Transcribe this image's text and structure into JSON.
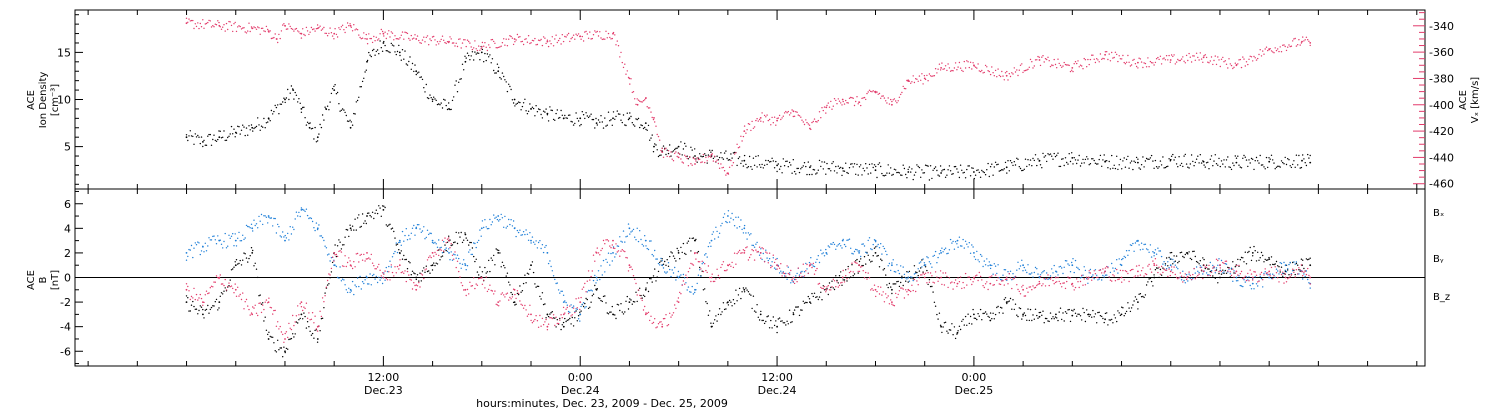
{
  "chart_data": [
    {
      "type": "scatter",
      "panel": "top",
      "left_axis": {
        "label_lines": [
          "ACE",
          "Ion Density",
          "[cm⁻³]"
        ],
        "ticks": [
          5,
          10,
          15
        ],
        "ylim": [
          0.5,
          19.5
        ],
        "color": "#000000"
      },
      "right_axis": {
        "label_lines": [
          "ACE",
          "Vₓ [km/s]"
        ],
        "ticks": [
          -340,
          -360,
          -380,
          -400,
          -420,
          -440,
          -460
        ],
        "ylim": [
          -464,
          -328
        ],
        "color": "#e23a6a"
      },
      "series": [
        {
          "color": "#000000",
          "axis": "left",
          "x": [
            0,
            1,
            2,
            3,
            4,
            5,
            6,
            6.5,
            7,
            7.5,
            8,
            8.5,
            9,
            10,
            11,
            12,
            13,
            14,
            15,
            16,
            17,
            18,
            19,
            20,
            21,
            22,
            23,
            24,
            25,
            26,
            27,
            28,
            28.5,
            29,
            30,
            31,
            32,
            34,
            36,
            38,
            40,
            42,
            44,
            46,
            48,
            50,
            52,
            54,
            56,
            58,
            60,
            62,
            64,
            66,
            68,
            68.5
          ],
          "y": [
            6,
            5.5,
            6,
            6.5,
            7,
            8,
            10,
            11,
            9,
            7,
            6,
            9,
            11,
            7,
            14,
            16,
            15,
            13,
            10,
            9,
            14,
            15,
            13,
            10,
            9,
            8.5,
            8,
            8,
            7.5,
            8,
            8,
            7.5,
            5,
            4.5,
            5,
            4,
            4,
            3.5,
            3,
            2.8,
            2.7,
            2.5,
            2.3,
            2.2,
            2.3,
            2.8,
            3.5,
            3.8,
            3.4,
            3.3,
            3.6,
            3.4,
            3.3,
            3.4,
            3.5,
            3.3
          ]
        },
        {
          "color": "#e23a6a",
          "axis": "right",
          "x": [
            0,
            2,
            4,
            5,
            5.5,
            6,
            7,
            8,
            9,
            10,
            11,
            12,
            14,
            16,
            18,
            20,
            22,
            24,
            26,
            27,
            27.5,
            28,
            28.5,
            29,
            30,
            31,
            32,
            33,
            34,
            35,
            36,
            37,
            38,
            39,
            40,
            41,
            42,
            43,
            44,
            45,
            46,
            48,
            50,
            52,
            54,
            56,
            58,
            60,
            62,
            64,
            66,
            68,
            68.5
          ],
          "y": [
            -338,
            -340,
            -342,
            -344,
            -350,
            -340,
            -346,
            -342,
            -346,
            -340,
            -350,
            -346,
            -350,
            -352,
            -356,
            -350,
            -352,
            -348,
            -346,
            -380,
            -400,
            -395,
            -410,
            -436,
            -440,
            -445,
            -438,
            -452,
            -420,
            -410,
            -412,
            -405,
            -418,
            -402,
            -396,
            -398,
            -390,
            -400,
            -382,
            -380,
            -372,
            -370,
            -378,
            -366,
            -372,
            -362,
            -368,
            -366,
            -364,
            -370,
            -358,
            -352,
            -353
          ]
        }
      ]
    },
    {
      "type": "scatter",
      "panel": "bottom",
      "left_axis": {
        "label_lines": [
          "ACE",
          "B",
          "[nT]"
        ],
        "ticks": [
          -6,
          -4,
          -2,
          0,
          2,
          4,
          6
        ],
        "ylim": [
          -7.2,
          7.2
        ],
        "color": "#000000"
      },
      "zero_line": true,
      "series": [
        {
          "name": "Bₓ",
          "color": "#000000",
          "x": [
            0,
            1,
            2,
            3,
            4,
            5,
            6,
            7,
            8,
            9,
            10,
            11,
            12,
            13,
            14,
            15,
            16,
            17,
            18,
            19,
            20,
            21,
            22,
            23,
            24,
            25,
            26,
            27,
            28,
            29,
            30,
            31,
            32,
            33,
            34,
            35,
            36,
            37,
            38,
            39,
            40,
            41,
            42,
            43,
            44,
            45,
            46,
            47,
            48,
            49,
            50,
            51,
            52,
            53,
            54,
            55,
            56,
            57,
            58,
            59,
            60,
            61,
            62,
            63,
            64,
            65,
            66,
            67,
            68,
            68.5
          ],
          "y": [
            -2,
            -3,
            -2,
            1,
            2,
            -5,
            -6,
            -3,
            -5,
            2,
            4,
            5,
            5.5,
            2,
            0,
            1,
            3,
            3.5,
            0,
            2,
            -2,
            1,
            -3,
            -4,
            -3,
            -1,
            -3,
            -2,
            -1,
            1,
            2,
            3,
            -4,
            -2,
            -1,
            -3,
            -4,
            -3,
            -2,
            -1,
            0,
            1,
            2,
            -1,
            0,
            1,
            -4,
            -4.5,
            -3,
            -3.5,
            -2,
            -3,
            -3.2,
            -3,
            -3.1,
            -3,
            -3.4,
            -3,
            -2,
            0,
            1.5,
            2,
            1,
            0,
            1,
            2,
            1.5,
            0.5,
            1,
            1
          ]
        },
        {
          "name": "Bᵧ",
          "color": "#1f7fd8",
          "x": [
            0,
            1,
            2,
            3,
            4,
            5,
            6,
            7,
            8,
            9,
            10,
            11,
            12,
            13,
            14,
            15,
            16,
            17,
            18,
            19,
            20,
            21,
            22,
            23,
            24,
            25,
            26,
            27,
            28,
            29,
            30,
            31,
            32,
            33,
            34,
            35,
            36,
            37,
            38,
            39,
            40,
            41,
            42,
            43,
            44,
            45,
            46,
            47,
            48,
            49,
            50,
            51,
            52,
            53,
            54,
            55,
            56,
            57,
            58,
            59,
            60,
            61,
            62,
            63,
            64,
            65,
            66,
            67,
            68,
            68.5
          ],
          "y": [
            2,
            2.5,
            3,
            3,
            4,
            5,
            3,
            5.5,
            4,
            1,
            -1,
            0,
            0,
            3,
            4,
            3,
            2,
            1,
            4,
            5,
            4,
            3,
            2,
            -2,
            -3,
            0,
            2,
            4,
            3,
            1,
            0,
            -1,
            3,
            5,
            4,
            2,
            1,
            0,
            1,
            2,
            3,
            2,
            3,
            1,
            0,
            1,
            2,
            3,
            2,
            1,
            0,
            1,
            0,
            0.5,
            1,
            0,
            0.5,
            1,
            3,
            2,
            1,
            0,
            0.5,
            1,
            0,
            -0.5,
            0,
            1,
            0.5,
            -0.5
          ]
        },
        {
          "name": "B_z",
          "color": "#e23a6a",
          "x": [
            0,
            1,
            2,
            3,
            4,
            5,
            6,
            7,
            8,
            9,
            10,
            11,
            12,
            13,
            14,
            15,
            16,
            17,
            18,
            19,
            20,
            21,
            22,
            23,
            24,
            25,
            26,
            27,
            28,
            29,
            30,
            31,
            32,
            33,
            34,
            35,
            36,
            37,
            38,
            39,
            40,
            41,
            42,
            43,
            44,
            45,
            46,
            47,
            48,
            49,
            50,
            51,
            52,
            53,
            54,
            55,
            56,
            57,
            58,
            59,
            60,
            61,
            62,
            63,
            64,
            65,
            66,
            67,
            68,
            68.5
          ],
          "y": [
            -1,
            -2,
            0,
            -1,
            -3,
            -2,
            -5,
            -2,
            -4,
            2,
            1,
            2,
            0,
            1,
            -1,
            2,
            3,
            -1,
            0,
            -2,
            -1,
            -3,
            -4,
            -3,
            -2,
            2,
            3,
            1,
            -3,
            -4,
            -2,
            2,
            0,
            1,
            2,
            2,
            1,
            0,
            1,
            -1,
            0,
            1,
            -1,
            -2,
            -1,
            0,
            0,
            -0.5,
            0,
            -0.5,
            0,
            -1,
            -0.5,
            0,
            -0.5,
            0,
            0.5,
            0,
            0.5,
            1,
            0.5,
            0,
            0.5,
            1,
            0.5,
            0,
            0.5,
            0,
            0.5,
            0
          ]
        }
      ]
    }
  ],
  "x_axis": {
    "xlim": [
      -6.8,
      75.5
    ],
    "major_ticks": [
      {
        "x": 12,
        "time": "12:00",
        "date": "Dec.23"
      },
      {
        "x": 24,
        "time": "0:00",
        "date": "Dec.24"
      },
      {
        "x": 36,
        "time": "12:00",
        "date": "Dec.24"
      },
      {
        "x": 48,
        "time": "0:00",
        "date": "Dec.25"
      }
    ],
    "minor_step_hours": 3,
    "title": "hours:minutes, Dec. 23, 2009 - Dec. 25, 2009"
  }
}
